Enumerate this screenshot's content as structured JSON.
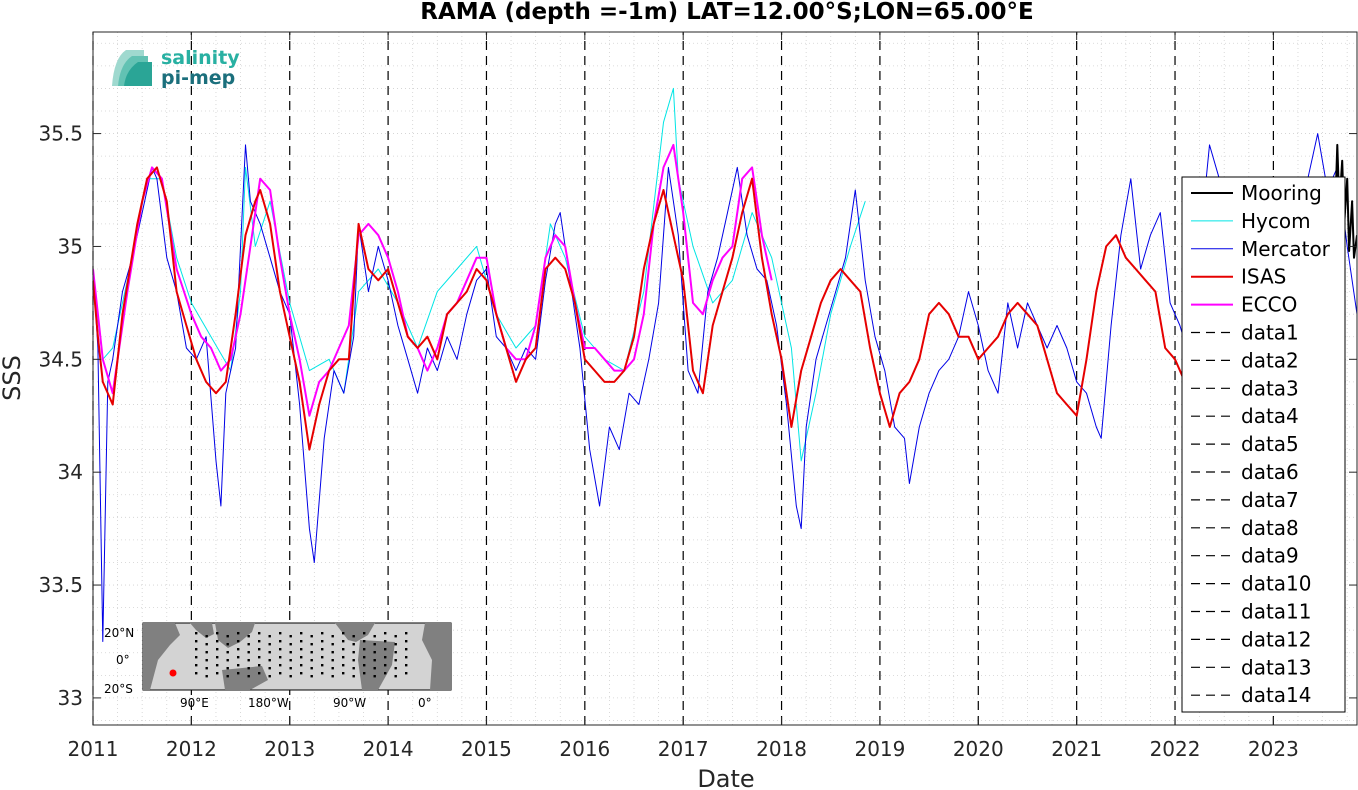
{
  "chart_data": {
    "type": "line",
    "title": "RAMA (depth =-1m) LAT=12.00°S;LON=65.00°E",
    "xlabel": "Date",
    "ylabel": "SSS",
    "xlim": [
      2011.0,
      2023.85
    ],
    "ylim": [
      32.88,
      35.95
    ],
    "x_ticks": [
      2011,
      2012,
      2013,
      2014,
      2015,
      2016,
      2017,
      2018,
      2019,
      2020,
      2021,
      2022,
      2023
    ],
    "y_ticks": [
      33,
      33.5,
      34,
      34.5,
      35,
      35.5
    ],
    "y_tick_labels": [
      "33",
      "33.5",
      "34",
      "34.5",
      "35",
      "35.5"
    ],
    "grid": "minor dotted",
    "legend_position": "right",
    "series": [
      {
        "name": "Mooring",
        "color": "#000000",
        "width": 2,
        "x": [
          2023.62,
          2023.65,
          2023.67,
          2023.7,
          2023.72,
          2023.75,
          2023.77,
          2023.8,
          2023.82,
          2023.85
        ],
        "y": [
          35.05,
          35.45,
          35.18,
          35.38,
          35.1,
          35.3,
          34.98,
          35.2,
          34.95,
          35.05
        ]
      },
      {
        "name": "Hycom",
        "color": "#00e5e5",
        "width": 1,
        "x": [
          2011.0,
          2011.1,
          2011.2,
          2011.4,
          2011.55,
          2011.7,
          2011.85,
          2012.0,
          2012.2,
          2012.4,
          2012.5,
          2012.55,
          2012.65,
          2012.8,
          2013.0,
          2013.2,
          2013.4,
          2013.55,
          2013.7,
          2013.9,
          2014.1,
          2014.3,
          2014.5,
          2014.7,
          2014.9,
          2015.1,
          2015.3,
          2015.5,
          2015.65,
          2015.8,
          2016.0,
          2016.2,
          2016.4,
          2016.6,
          2016.8,
          2016.9,
          2016.95,
          2017.1,
          2017.3,
          2017.5,
          2017.7,
          2017.9,
          2018.1,
          2018.2,
          2018.35,
          2018.5,
          2018.7,
          2018.85
        ],
        "y": [
          34.85,
          34.5,
          34.55,
          34.95,
          35.3,
          35.3,
          34.95,
          34.75,
          34.6,
          34.45,
          34.8,
          35.35,
          35.0,
          35.2,
          34.75,
          34.45,
          34.5,
          34.35,
          34.8,
          34.9,
          34.75,
          34.55,
          34.8,
          34.9,
          35.0,
          34.7,
          34.55,
          34.65,
          35.1,
          34.95,
          34.6,
          34.5,
          34.45,
          34.8,
          35.55,
          35.7,
          35.3,
          35.0,
          34.75,
          34.85,
          35.15,
          34.95,
          34.55,
          34.05,
          34.35,
          34.7,
          35.0,
          35.2
        ]
      },
      {
        "name": "Mercator",
        "color": "#0000e6",
        "width": 1,
        "x": [
          2011.0,
          2011.05,
          2011.1,
          2011.15,
          2011.2,
          2011.3,
          2011.4,
          2011.5,
          2011.6,
          2011.65,
          2011.75,
          2011.85,
          2011.95,
          2012.05,
          2012.15,
          2012.25,
          2012.3,
          2012.35,
          2012.45,
          2012.55,
          2012.6,
          2012.7,
          2012.8,
          2012.9,
          2013.0,
          2013.1,
          2013.2,
          2013.25,
          2013.35,
          2013.45,
          2013.55,
          2013.65,
          2013.7,
          2013.8,
          2013.9,
          2014.0,
          2014.1,
          2014.2,
          2014.3,
          2014.4,
          2014.5,
          2014.6,
          2014.7,
          2014.8,
          2014.9,
          2015.0,
          2015.1,
          2015.2,
          2015.3,
          2015.4,
          2015.5,
          2015.6,
          2015.7,
          2015.75,
          2015.85,
          2015.95,
          2016.05,
          2016.15,
          2016.25,
          2016.35,
          2016.45,
          2016.55,
          2016.65,
          2016.75,
          2016.85,
          2016.9,
          2016.95,
          2017.05,
          2017.15,
          2017.25,
          2017.35,
          2017.45,
          2017.55,
          2017.65,
          2017.75,
          2017.85,
          2017.95,
          2018.05,
          2018.15,
          2018.2,
          2018.25,
          2018.35,
          2018.45,
          2018.55,
          2018.65,
          2018.75,
          2018.85,
          2018.95,
          2019.05,
          2019.15,
          2019.25,
          2019.3,
          2019.4,
          2019.5,
          2019.6,
          2019.7,
          2019.8,
          2019.9,
          2020.0,
          2020.1,
          2020.2,
          2020.3,
          2020.4,
          2020.5,
          2020.6,
          2020.7,
          2020.8,
          2020.9,
          2021.0,
          2021.1,
          2021.2,
          2021.25,
          2021.35,
          2021.45,
          2021.55,
          2021.65,
          2021.75,
          2021.85,
          2021.95,
          2022.05,
          2022.15,
          2022.25,
          2022.35,
          2022.45,
          2022.55,
          2022.65,
          2022.75,
          2022.85,
          2022.95,
          2023.05,
          2023.15,
          2023.25,
          2023.35,
          2023.45,
          2023.55,
          2023.65,
          2023.75,
          2023.85
        ],
        "y": [
          34.9,
          34.55,
          33.25,
          34.4,
          34.5,
          34.8,
          34.95,
          35.15,
          35.35,
          35.3,
          34.95,
          34.8,
          34.55,
          34.5,
          34.6,
          34.05,
          33.85,
          34.35,
          34.55,
          35.45,
          35.2,
          35.1,
          34.95,
          34.8,
          34.7,
          34.3,
          33.75,
          33.6,
          34.15,
          34.45,
          34.35,
          34.6,
          35.1,
          34.8,
          35.0,
          34.85,
          34.65,
          34.5,
          34.35,
          34.55,
          34.45,
          34.6,
          34.5,
          34.7,
          34.85,
          34.9,
          34.6,
          34.55,
          34.45,
          34.55,
          34.5,
          34.85,
          35.1,
          35.15,
          34.85,
          34.55,
          34.1,
          33.85,
          34.2,
          34.1,
          34.35,
          34.3,
          34.5,
          34.75,
          35.35,
          35.2,
          35.05,
          34.45,
          34.35,
          34.8,
          34.95,
          35.15,
          35.35,
          35.05,
          34.9,
          34.85,
          34.65,
          34.3,
          33.85,
          33.75,
          34.2,
          34.5,
          34.65,
          34.8,
          34.95,
          35.25,
          34.85,
          34.6,
          34.45,
          34.2,
          34.15,
          33.95,
          34.2,
          34.35,
          34.45,
          34.5,
          34.6,
          34.8,
          34.65,
          34.45,
          34.35,
          34.75,
          34.55,
          34.75,
          34.65,
          34.55,
          34.65,
          34.55,
          34.4,
          34.35,
          34.2,
          34.15,
          34.65,
          35.05,
          35.3,
          34.9,
          35.05,
          35.15,
          34.75,
          34.65,
          34.5,
          35.0,
          35.45,
          35.3,
          35.05,
          34.95,
          35.25,
          35.0,
          35.05,
          35.2,
          34.95,
          35.1,
          35.3,
          35.5,
          35.25,
          35.35,
          35.0,
          34.7
        ]
      },
      {
        "name": "ISAS",
        "color": "#e60000",
        "width": 2,
        "x": [
          2011.0,
          2011.05,
          2011.1,
          2011.2,
          2011.3,
          2011.45,
          2011.55,
          2011.65,
          2011.75,
          2011.85,
          2011.95,
          2012.05,
          2012.15,
          2012.25,
          2012.35,
          2012.45,
          2012.55,
          2012.65,
          2012.7,
          2012.8,
          2012.9,
          2013.0,
          2013.1,
          2013.2,
          2013.3,
          2013.4,
          2013.5,
          2013.6,
          2013.7,
          2013.8,
          2013.9,
          2014.0,
          2014.1,
          2014.2,
          2014.3,
          2014.4,
          2014.5,
          2014.6,
          2014.7,
          2014.8,
          2014.9,
          2015.0,
          2015.1,
          2015.2,
          2015.3,
          2015.4,
          2015.5,
          2015.6,
          2015.7,
          2015.8,
          2015.9,
          2016.0,
          2016.1,
          2016.2,
          2016.3,
          2016.4,
          2016.5,
          2016.6,
          2016.7,
          2016.8,
          2016.9,
          2017.0,
          2017.1,
          2017.2,
          2017.3,
          2017.4,
          2017.5,
          2017.6,
          2017.7,
          2017.8,
          2017.9,
          2018.0,
          2018.1,
          2018.2,
          2018.3,
          2018.4,
          2018.5,
          2018.6,
          2018.7,
          2018.8,
          2018.9,
          2019.0,
          2019.1,
          2019.2,
          2019.3,
          2019.4,
          2019.5,
          2019.6,
          2019.7,
          2019.8,
          2019.9,
          2020.0,
          2020.1,
          2020.2,
          2020.3,
          2020.4,
          2020.5,
          2020.6,
          2020.7,
          2020.8,
          2020.9,
          2021.0,
          2021.1,
          2021.2,
          2021.3,
          2021.4,
          2021.5,
          2021.6,
          2021.7,
          2021.8,
          2021.9,
          2022.0,
          2022.1
        ],
        "y": [
          34.85,
          34.6,
          34.4,
          34.3,
          34.7,
          35.1,
          35.3,
          35.35,
          35.2,
          34.8,
          34.65,
          34.5,
          34.4,
          34.35,
          34.4,
          34.7,
          35.05,
          35.2,
          35.25,
          35.1,
          34.8,
          34.6,
          34.4,
          34.1,
          34.3,
          34.45,
          34.5,
          34.5,
          35.1,
          34.9,
          34.85,
          34.9,
          34.75,
          34.6,
          34.55,
          34.6,
          34.5,
          34.7,
          34.75,
          34.8,
          34.9,
          34.85,
          34.7,
          34.55,
          34.4,
          34.5,
          34.55,
          34.9,
          34.95,
          34.9,
          34.75,
          34.5,
          34.45,
          34.4,
          34.4,
          34.45,
          34.6,
          34.9,
          35.1,
          35.25,
          35.05,
          34.85,
          34.45,
          34.35,
          34.65,
          34.8,
          34.95,
          35.15,
          35.3,
          34.95,
          34.7,
          34.5,
          34.2,
          34.45,
          34.6,
          34.75,
          34.85,
          34.9,
          34.85,
          34.8,
          34.55,
          34.35,
          34.2,
          34.35,
          34.4,
          34.5,
          34.7,
          34.75,
          34.7,
          34.6,
          34.6,
          34.5,
          34.55,
          34.6,
          34.7,
          34.75,
          34.7,
          34.65,
          34.5,
          34.35,
          34.3,
          34.25,
          34.5,
          34.8,
          35.0,
          35.05,
          34.95,
          34.9,
          34.85,
          34.8,
          34.55,
          34.5,
          34.4
        ]
      },
      {
        "name": "ECCO",
        "color": "#ff00ff",
        "width": 2,
        "x": [
          2011.0,
          2011.1,
          2011.2,
          2011.35,
          2011.5,
          2011.6,
          2011.7,
          2011.85,
          2012.0,
          2012.1,
          2012.2,
          2012.3,
          2012.4,
          2012.5,
          2012.6,
          2012.7,
          2012.8,
          2012.9,
          2013.0,
          2013.1,
          2013.2,
          2013.3,
          2013.4,
          2013.5,
          2013.6,
          2013.7,
          2013.8,
          2013.9,
          2014.0,
          2014.1,
          2014.2,
          2014.3,
          2014.4,
          2014.5,
          2014.6,
          2014.7,
          2014.8,
          2014.9,
          2015.0,
          2015.1,
          2015.2,
          2015.3,
          2015.4,
          2015.5,
          2015.6,
          2015.7,
          2015.8,
          2015.9,
          2016.0,
          2016.1,
          2016.2,
          2016.3,
          2016.4,
          2016.5,
          2016.6,
          2016.7,
          2016.8,
          2016.9,
          2017.0,
          2017.1,
          2017.2,
          2017.3,
          2017.4,
          2017.5,
          2017.6,
          2017.7,
          2017.8,
          2017.9
        ],
        "y": [
          34.9,
          34.5,
          34.35,
          34.8,
          35.2,
          35.35,
          35.3,
          34.9,
          34.7,
          34.6,
          34.55,
          34.45,
          34.5,
          34.7,
          35.0,
          35.3,
          35.25,
          34.95,
          34.7,
          34.5,
          34.25,
          34.4,
          34.45,
          34.55,
          34.65,
          35.05,
          35.1,
          35.05,
          34.95,
          34.8,
          34.6,
          34.55,
          34.45,
          34.55,
          34.7,
          34.75,
          34.85,
          34.95,
          34.95,
          34.7,
          34.55,
          34.5,
          34.5,
          34.65,
          34.95,
          35.05,
          35.0,
          34.75,
          34.55,
          34.55,
          34.5,
          34.45,
          34.45,
          34.5,
          34.7,
          35.1,
          35.35,
          35.45,
          35.15,
          34.75,
          34.7,
          34.85,
          34.95,
          35.0,
          35.3,
          35.35,
          35.05,
          34.85
        ]
      }
    ],
    "dashed_series": [
      {
        "name": "data1",
        "x": [
          2011.0,
          2011.0
        ],
        "y": [
          32.88,
          35.95
        ]
      },
      {
        "name": "data2",
        "x": [
          2012.0,
          2012.0
        ],
        "y": [
          32.88,
          35.95
        ]
      },
      {
        "name": "data3",
        "x": [
          2013.0,
          2013.0
        ],
        "y": [
          32.88,
          35.95
        ]
      },
      {
        "name": "data4",
        "x": [
          2014.0,
          2014.0
        ],
        "y": [
          32.88,
          35.95
        ]
      },
      {
        "name": "data5",
        "x": [
          2015.0,
          2015.0
        ],
        "y": [
          32.88,
          35.95
        ]
      },
      {
        "name": "data6",
        "x": [
          2016.0,
          2016.0
        ],
        "y": [
          32.88,
          35.95
        ]
      },
      {
        "name": "data7",
        "x": [
          2017.0,
          2017.0
        ],
        "y": [
          32.88,
          35.95
        ]
      },
      {
        "name": "data8",
        "x": [
          2018.0,
          2018.0
        ],
        "y": [
          32.88,
          35.95
        ]
      },
      {
        "name": "data9",
        "x": [
          2019.0,
          2019.0
        ],
        "y": [
          32.88,
          35.95
        ]
      },
      {
        "name": "data10",
        "x": [
          2020.0,
          2020.0
        ],
        "y": [
          32.88,
          35.95
        ]
      },
      {
        "name": "data11",
        "x": [
          2021.0,
          2021.0
        ],
        "y": [
          32.88,
          35.95
        ]
      },
      {
        "name": "data12",
        "x": [
          2022.0,
          2022.0
        ],
        "y": [
          32.88,
          35.95
        ]
      },
      {
        "name": "data13",
        "x": [
          2023.0,
          2023.0
        ],
        "y": [
          32.88,
          35.95
        ]
      },
      {
        "name": "data14",
        "x": [],
        "y": []
      }
    ]
  },
  "logo": {
    "line1": "salinity",
    "line2": "pi-mep"
  },
  "inset_map": {
    "lat_labels": [
      "20°N",
      "0°",
      "20°S"
    ],
    "lon_labels": [
      "90°E",
      "180°W",
      "90°W",
      "0°"
    ],
    "land_color": "#808080",
    "ocean_color": "#d3d3d3",
    "marker_color": "#ff0000"
  }
}
